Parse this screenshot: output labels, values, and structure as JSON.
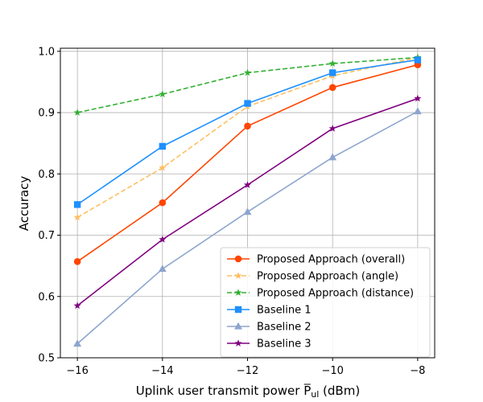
{
  "chart_data": {
    "type": "line",
    "title": "",
    "xlabel_main": "Uplink user transmit power ",
    "xlabel_symbol": "P",
    "xlabel_subscript": "ul",
    "xlabel_unit": " (dBm)",
    "ylabel": "Accuracy",
    "x": [
      -16,
      -14,
      -12,
      -10,
      -8
    ],
    "xticks": [
      "−16",
      "−14",
      "−12",
      "−10",
      "−8"
    ],
    "yticks": [
      "0.5",
      "0.6",
      "0.7",
      "0.8",
      "0.9",
      "1.0"
    ],
    "xlim": [
      -16.4,
      -7.6
    ],
    "ylim": [
      0.5,
      1.005
    ],
    "grid": true,
    "legend_position": "lower-right",
    "series": [
      {
        "name": "Proposed Approach (overall)",
        "values": [
          0.657,
          0.753,
          0.878,
          0.941,
          0.978
        ],
        "color": "#ff4500",
        "dash": "solid",
        "marker": "circle"
      },
      {
        "name": "Proposed Approach (angle)",
        "values": [
          0.729,
          0.81,
          0.91,
          0.96,
          0.99
        ],
        "color": "#ffbf60",
        "dash": "dashed",
        "marker": "star"
      },
      {
        "name": "Proposed Approach (distance)",
        "values": [
          0.9,
          0.93,
          0.965,
          0.98,
          0.99
        ],
        "color": "#32b032",
        "dash": "dashed",
        "marker": "star"
      },
      {
        "name": "Baseline 1",
        "values": [
          0.75,
          0.845,
          0.915,
          0.965,
          0.986
        ],
        "color": "#1e90ff",
        "dash": "solid",
        "marker": "square"
      },
      {
        "name": "Baseline 2",
        "values": [
          0.523,
          0.645,
          0.738,
          0.827,
          0.902
        ],
        "color": "#8da5ce",
        "dash": "solid",
        "marker": "triangle"
      },
      {
        "name": "Baseline 3",
        "values": [
          0.585,
          0.693,
          0.782,
          0.874,
          0.923
        ],
        "color": "#800080",
        "dash": "solid",
        "marker": "star"
      }
    ]
  }
}
